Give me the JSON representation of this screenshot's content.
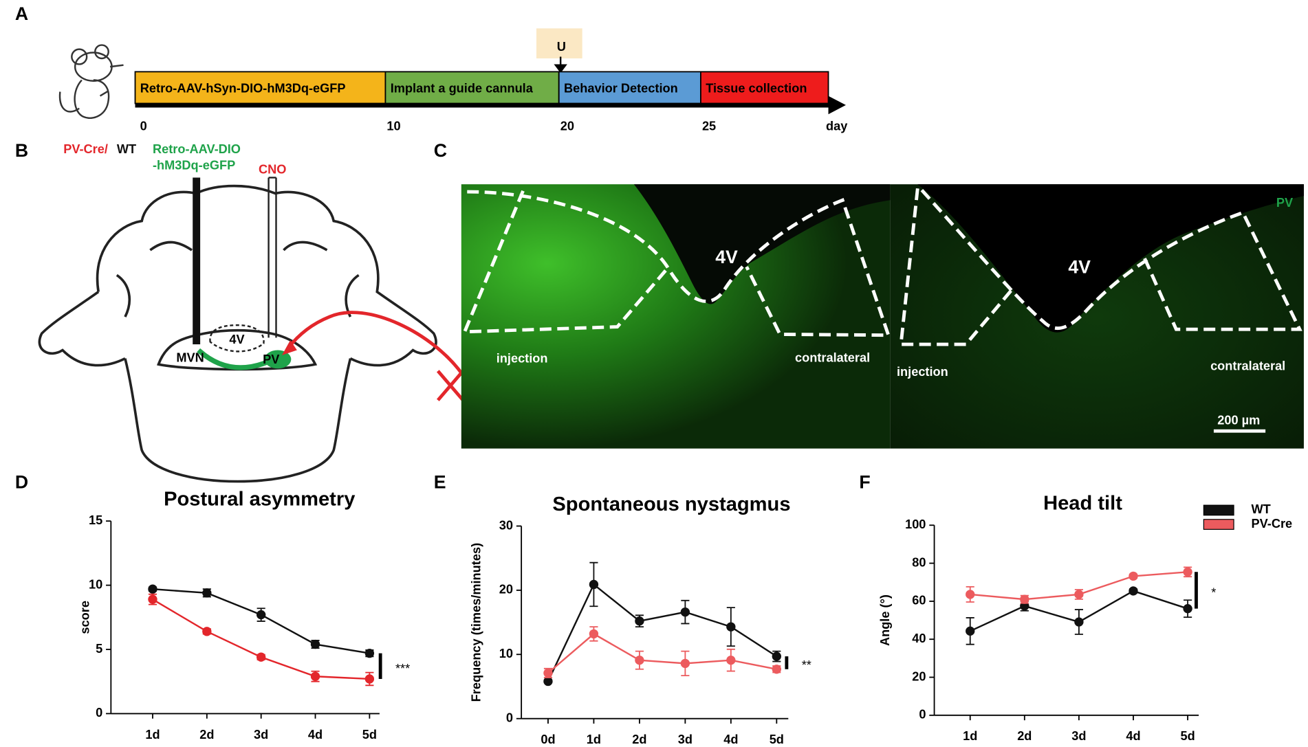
{
  "panels": [
    "A",
    "B",
    "C",
    "D",
    "E",
    "F"
  ],
  "timeline": {
    "segments": [
      {
        "label": "Retro-AAV-hSyn-DIO-hM3Dq-eGFP",
        "color": "#f4b41a"
      },
      {
        "label": "Implant a guide cannula",
        "color": "#70ad47"
      },
      {
        "label": "Behavior Detection",
        "color": "#5b9bd5"
      },
      {
        "label": "Tissue collection",
        "color": "#ee1c1c"
      }
    ],
    "ticks": [
      0,
      10,
      20,
      25
    ],
    "unit": "day",
    "marker": "U"
  },
  "diagram": {
    "genotype": "PV-Cre/",
    "control": "WT",
    "virus_line1": "Retro-AAV-DIO",
    "virus_line2": "-hM3Dq-eGFP",
    "drug": "CNO",
    "ventricle": "4V",
    "mvn": "MVN",
    "pv": "PV"
  },
  "micrograph": {
    "left": {
      "ventricle": "4V",
      "injection": "injection",
      "contralateral": "contralateral"
    },
    "right": {
      "ventricle": "4V",
      "injection": "injection",
      "contralateral": "contralateral",
      "channel": "PV",
      "scale_bar": "200 µm"
    }
  },
  "chart_data": [
    {
      "type": "line",
      "title": "Postural asymmetry",
      "y_label": "score",
      "categories": [
        "1d",
        "2d",
        "3d",
        "4d",
        "5d"
      ],
      "ylim": [
        0,
        15
      ],
      "yticks": [
        0,
        5,
        10,
        15
      ],
      "significance": "***",
      "series": [
        {
          "color": "#111111",
          "values": [
            9.7,
            9.4,
            7.7,
            5.4,
            4.7
          ],
          "errors": [
            0.15,
            0.3,
            0.5,
            0.3,
            0.25
          ]
        },
        {
          "color": "#e3262b",
          "values": [
            8.9,
            6.4,
            4.4,
            2.9,
            2.7
          ],
          "errors": [
            0.4,
            0.2,
            0.2,
            0.4,
            0.5
          ]
        }
      ]
    },
    {
      "type": "line",
      "title": "Spontaneous nystagmus",
      "y_label": "Frequency (times/minutes)",
      "categories": [
        "0d",
        "1d",
        "2d",
        "3d",
        "4d",
        "5d"
      ],
      "ylim": [
        0,
        30
      ],
      "yticks": [
        0,
        10,
        20,
        30
      ],
      "significance": "**",
      "series": [
        {
          "color": "#111111",
          "values": [
            5.8,
            20.9,
            15.2,
            16.6,
            14.3,
            9.7
          ],
          "errors": [
            0,
            3.4,
            0.9,
            1.8,
            3.0,
            0.8
          ]
        },
        {
          "color": "#ec5b5e",
          "values": [
            7.1,
            13.2,
            9.1,
            8.6,
            9.1,
            7.7
          ],
          "errors": [
            0.7,
            1.1,
            1.4,
            1.9,
            1.7,
            0.5
          ]
        }
      ]
    },
    {
      "type": "line",
      "title": "Head tilt",
      "y_label": "Angle (°)",
      "categories": [
        "1d",
        "2d",
        "3d",
        "4d",
        "5d"
      ],
      "ylim": [
        0,
        100
      ],
      "yticks": [
        0,
        20,
        40,
        60,
        80,
        100
      ],
      "significance": "*",
      "legend": "upper right",
      "series": [
        {
          "name": "WT",
          "color": "#111111",
          "values": [
            44.3,
            57.5,
            49.1,
            65.4,
            56.1
          ],
          "errors": [
            7,
            2.5,
            6.5,
            1,
            4.5
          ]
        },
        {
          "name": "PV-Cre",
          "color": "#ec5b5e",
          "values": [
            63.6,
            61,
            63.6,
            73.2,
            75.4
          ],
          "errors": [
            4,
            2,
            2.5,
            1,
            2.5
          ]
        }
      ]
    }
  ]
}
